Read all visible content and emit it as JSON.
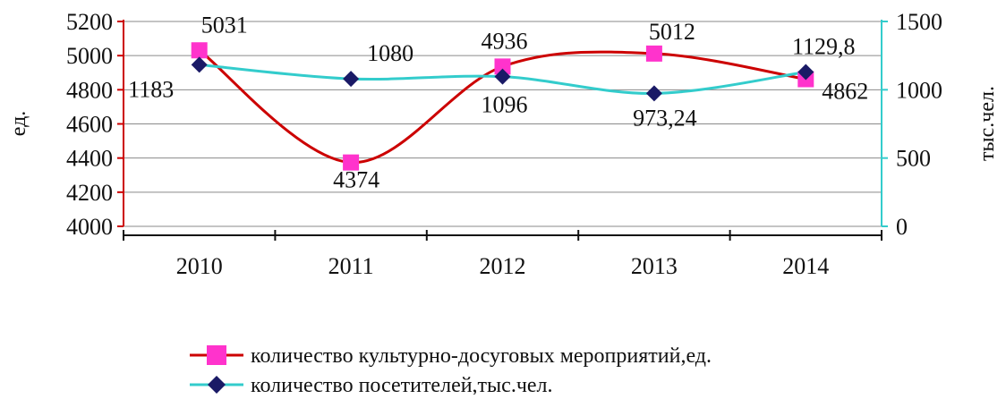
{
  "chart_data": {
    "type": "line",
    "categories": [
      "2010",
      "2011",
      "2012",
      "2013",
      "2014"
    ],
    "y_left": {
      "label": "ед.",
      "range": [
        4000,
        5200
      ],
      "ticks": [
        4000,
        4200,
        4400,
        4600,
        4800,
        5000,
        5200
      ],
      "color": "#cc0000"
    },
    "y_right": {
      "label": "тыс.чел.",
      "range": [
        0,
        1500
      ],
      "ticks": [
        0,
        500,
        1000,
        1500
      ],
      "color": "#33cccc"
    },
    "grid": true,
    "legend_position": "bottom",
    "series": [
      {
        "name": "количество культурно-досуговых мероприятий,ед.",
        "axis": "left",
        "line_color": "#cc0000",
        "marker_color": "#ff33cc",
        "marker": "square",
        "smooth": true,
        "values": [
          5031,
          4374,
          4936,
          5012,
          4862
        ],
        "labels": [
          "5031",
          "4374",
          "4936",
          "5012",
          "4862"
        ]
      },
      {
        "name": "количество посетителей,тыс.чел.",
        "axis": "right",
        "line_color": "#33cccc",
        "marker_color": "#1a1a66",
        "marker": "diamond",
        "smooth": true,
        "values": [
          1183,
          1080,
          1096,
          973.24,
          1129.8
        ],
        "labels": [
          "1183",
          "1080",
          "1096",
          "973,24",
          "1129,8"
        ]
      }
    ]
  }
}
